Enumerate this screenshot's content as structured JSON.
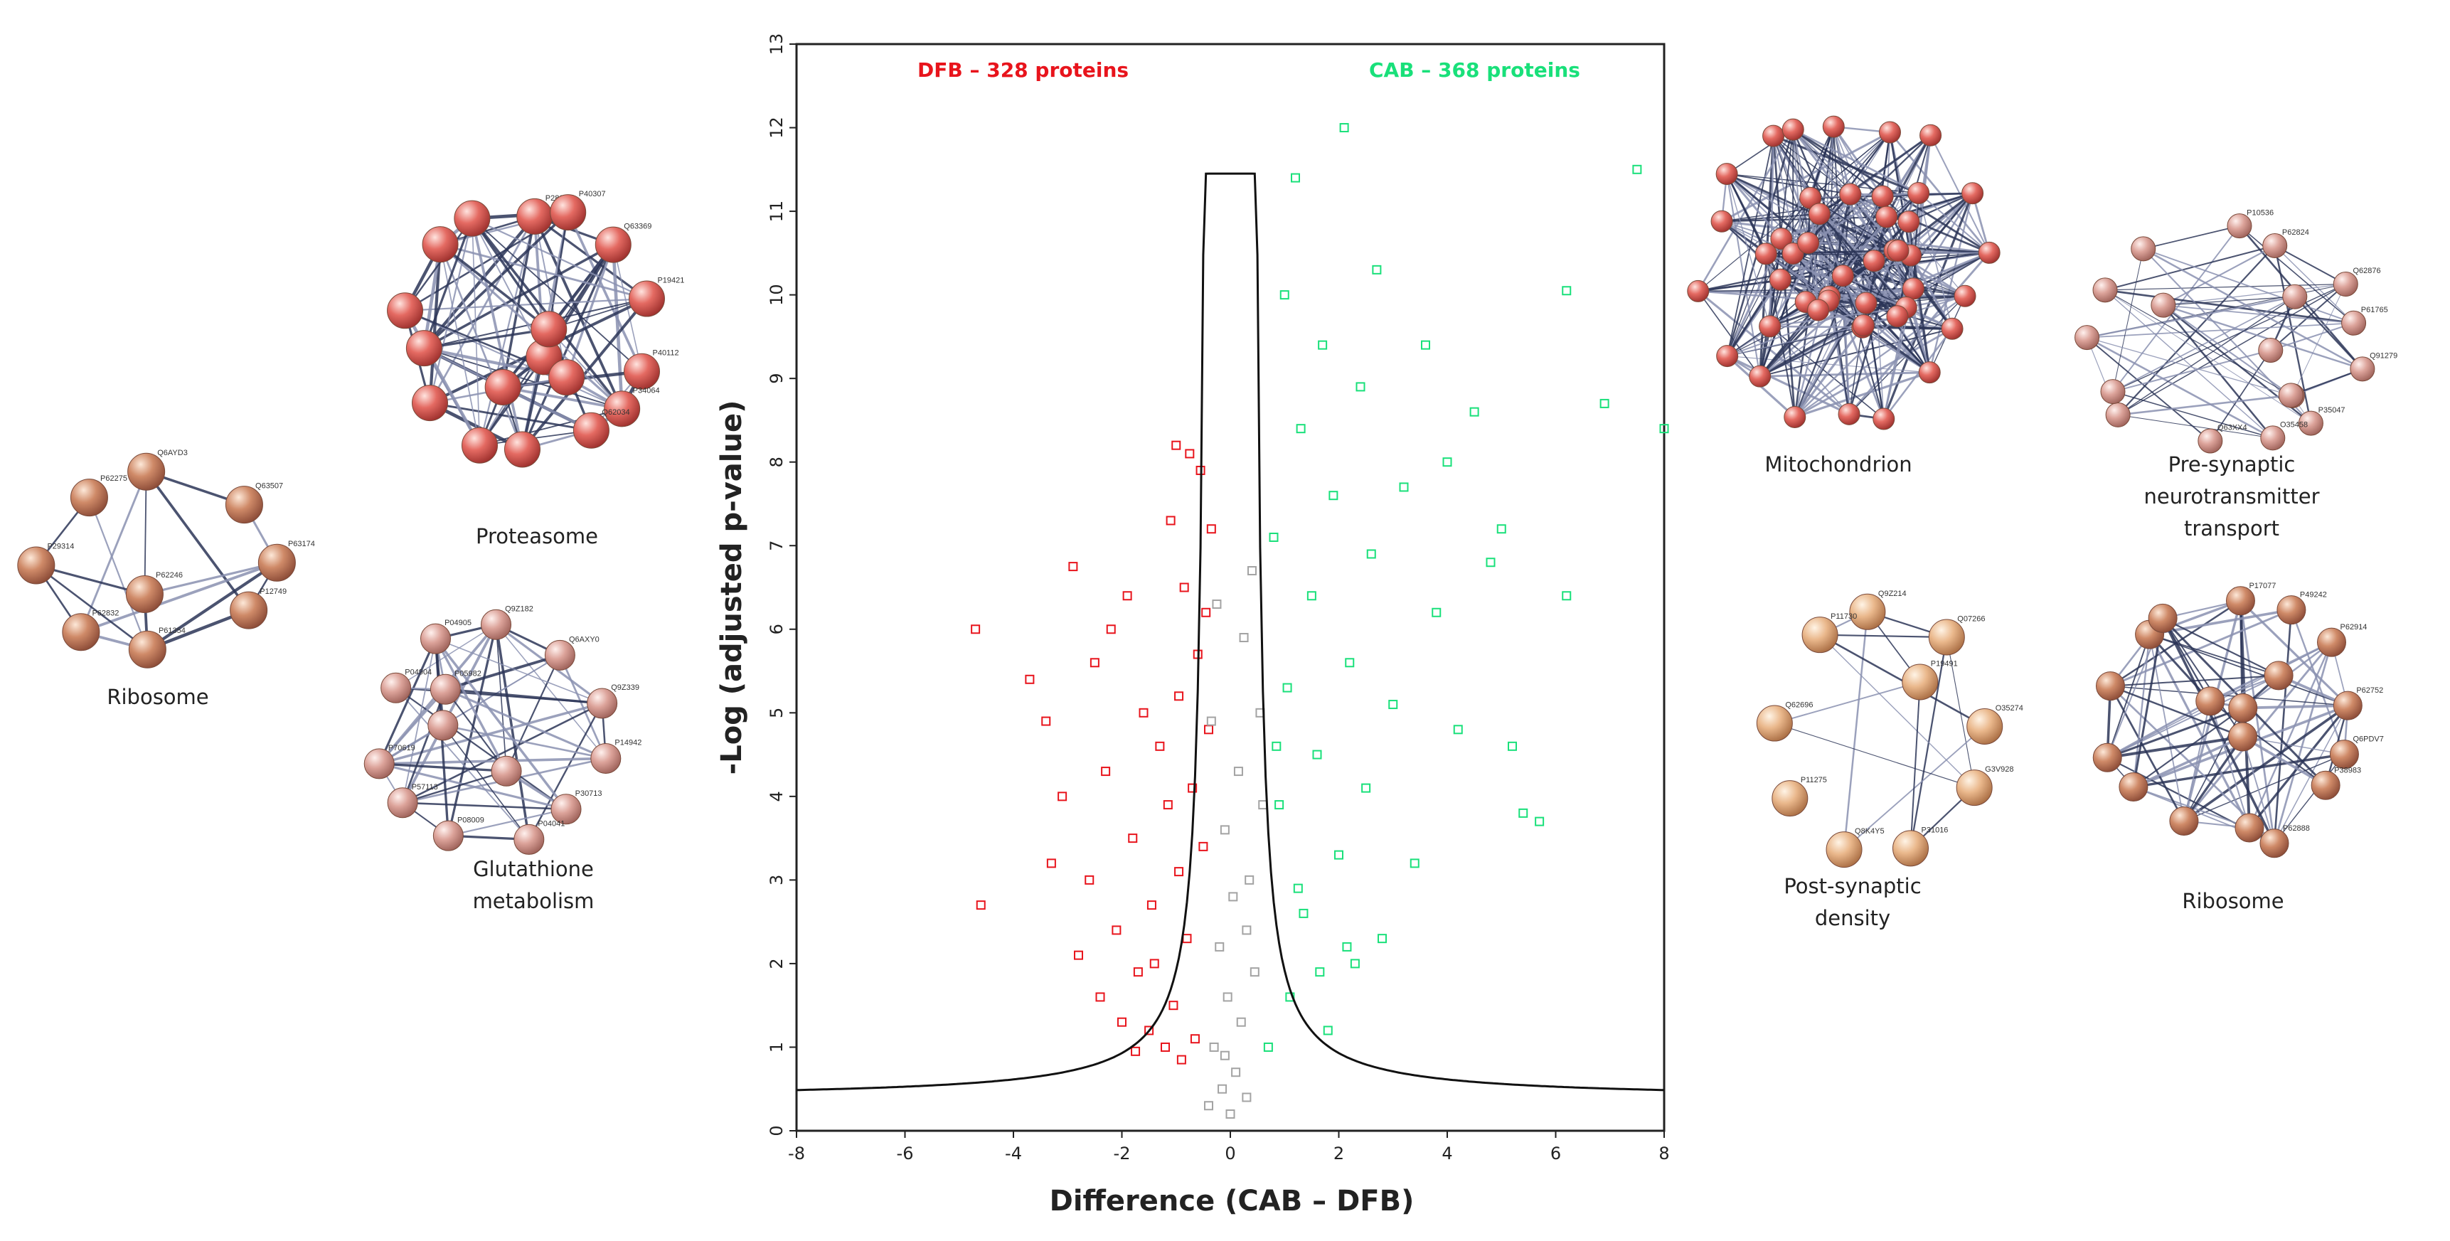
{
  "chart_data": {
    "type": "scatter",
    "title": "",
    "xlabel": "Difference (CAB – DFB)",
    "ylabel": "-Log (adjusted p-value)",
    "xlim": [
      -8,
      8
    ],
    "ylim": [
      0,
      13
    ],
    "x_ticks": [
      "-8",
      "-6",
      "-4",
      "-2",
      "0",
      "2",
      "4",
      "6",
      "8"
    ],
    "y_ticks": [
      "0",
      "1",
      "2",
      "3",
      "4",
      "5",
      "6",
      "7",
      "8",
      "9",
      "10",
      "11",
      "12",
      "13"
    ],
    "grid": false,
    "marker": "open-square",
    "group_labels": [
      {
        "text": "DFB – 328 proteins",
        "color": "#e8141c"
      },
      {
        "text": "CAB – 368 proteins",
        "color": "#19e07a"
      }
    ],
    "series": [
      {
        "name": "DFB",
        "color": "#e8141c",
        "count": 328,
        "points": [
          [
            -4.7,
            6.0
          ],
          [
            -4.6,
            2.7
          ],
          [
            -3.7,
            5.4
          ],
          [
            -3.4,
            4.9
          ],
          [
            -3.3,
            3.2
          ],
          [
            -2.9,
            6.75
          ],
          [
            -3.1,
            4.0
          ],
          [
            -2.8,
            2.1
          ],
          [
            -2.5,
            5.6
          ],
          [
            -2.6,
            3.0
          ],
          [
            -2.3,
            4.3
          ],
          [
            -2.2,
            6.0
          ],
          [
            -2.1,
            2.4
          ],
          [
            -1.9,
            6.4
          ],
          [
            -1.8,
            3.5
          ],
          [
            -1.7,
            1.9
          ],
          [
            -1.6,
            5.0
          ],
          [
            -1.5,
            1.2
          ],
          [
            -1.45,
            2.7
          ],
          [
            -1.3,
            4.6
          ],
          [
            -1.2,
            1.0
          ],
          [
            -1.1,
            7.3
          ],
          [
            -1.05,
            1.5
          ],
          [
            -1.0,
            8.2
          ],
          [
            -0.95,
            3.1
          ],
          [
            -0.9,
            0.85
          ],
          [
            -0.85,
            6.5
          ],
          [
            -0.8,
            2.3
          ],
          [
            -0.75,
            8.1
          ],
          [
            -0.7,
            4.1
          ],
          [
            -0.65,
            1.1
          ],
          [
            -0.6,
            5.7
          ],
          [
            -0.55,
            7.9
          ],
          [
            -0.5,
            3.4
          ],
          [
            -0.45,
            6.2
          ],
          [
            -0.4,
            4.8
          ],
          [
            -0.35,
            7.2
          ],
          [
            -2.4,
            1.6
          ],
          [
            -2.0,
            1.3
          ],
          [
            -1.75,
            0.95
          ],
          [
            -1.4,
            2.0
          ],
          [
            -1.15,
            3.9
          ],
          [
            -0.95,
            5.2
          ]
        ]
      },
      {
        "name": "CAB",
        "color": "#19e07a",
        "count": 368,
        "points": [
          [
            0.7,
            1.0
          ],
          [
            0.8,
            7.1
          ],
          [
            0.9,
            3.9
          ],
          [
            1.0,
            10.0
          ],
          [
            1.05,
            5.3
          ],
          [
            1.1,
            1.6
          ],
          [
            1.2,
            11.4
          ],
          [
            1.3,
            8.4
          ],
          [
            1.35,
            2.6
          ],
          [
            1.5,
            6.4
          ],
          [
            1.6,
            4.5
          ],
          [
            1.7,
            9.4
          ],
          [
            1.8,
            1.2
          ],
          [
            1.9,
            7.6
          ],
          [
            2.0,
            3.3
          ],
          [
            2.1,
            12.0
          ],
          [
            2.2,
            5.6
          ],
          [
            2.3,
            2.0
          ],
          [
            2.4,
            8.9
          ],
          [
            2.5,
            4.1
          ],
          [
            2.6,
            6.9
          ],
          [
            2.7,
            10.3
          ],
          [
            2.8,
            2.3
          ],
          [
            3.0,
            5.1
          ],
          [
            3.2,
            7.7
          ],
          [
            3.4,
            3.2
          ],
          [
            3.6,
            9.4
          ],
          [
            3.8,
            6.2
          ],
          [
            4.0,
            8.0
          ],
          [
            4.2,
            4.8
          ],
          [
            4.5,
            8.6
          ],
          [
            4.8,
            6.8
          ],
          [
            5.0,
            7.2
          ],
          [
            5.2,
            4.6
          ],
          [
            5.4,
            3.8
          ],
          [
            5.7,
            3.7
          ],
          [
            6.2,
            6.4
          ],
          [
            6.2,
            10.05
          ],
          [
            6.9,
            8.7
          ],
          [
            7.5,
            11.5
          ],
          [
            8.0,
            8.4
          ],
          [
            1.25,
            2.9
          ],
          [
            1.65,
            1.9
          ],
          [
            2.15,
            2.2
          ],
          [
            0.85,
            4.6
          ]
        ]
      },
      {
        "name": "",
        "color": "#a3a3a3",
        "points": [
          [
            -0.4,
            0.3
          ],
          [
            -0.3,
            1.0
          ],
          [
            -0.2,
            2.2
          ],
          [
            -0.15,
            0.5
          ],
          [
            -0.1,
            3.6
          ],
          [
            -0.05,
            1.6
          ],
          [
            0.0,
            0.2
          ],
          [
            0.05,
            2.8
          ],
          [
            0.1,
            0.7
          ],
          [
            0.15,
            4.3
          ],
          [
            0.2,
            1.3
          ],
          [
            0.25,
            5.9
          ],
          [
            0.3,
            0.4
          ],
          [
            0.35,
            3.0
          ],
          [
            0.4,
            6.7
          ],
          [
            0.45,
            1.9
          ],
          [
            -0.35,
            4.9
          ],
          [
            -0.25,
            6.3
          ],
          [
            0.3,
            2.4
          ],
          [
            -0.1,
            0.9
          ],
          [
            0.6,
            3.9
          ],
          [
            0.55,
            5.0
          ]
        ]
      }
    ],
    "threshold_curve": {
      "s0_asymptote": 0.38,
      "inner_half_width": 0.4,
      "plateau": 11.45
    }
  },
  "networks": [
    {
      "label": "Proteasome",
      "node_color": "#e05a58",
      "node_ids": [
        "P28075",
        "P40307",
        "Q63369",
        "P19421",
        "P40112",
        "P34064",
        "Q62034"
      ]
    },
    {
      "label": "Ribosome",
      "node_color": "#c98462",
      "node_ids": [
        "Q6AYD3",
        "Q63507",
        "P63174",
        "P12749",
        "P61354",
        "P62832",
        "P29314",
        "P62275",
        "P62246"
      ]
    },
    {
      "label": "Glutathione metabolism",
      "label_lines": [
        "Glutathione",
        "metabolism"
      ],
      "node_color": "#d69890",
      "node_ids": [
        "Q9Z182",
        "Q6AXY0",
        "Q9Z339",
        "P14942",
        "P30713",
        "P04041",
        "P08009",
        "P57113",
        "P70619",
        "P04904",
        "P04905",
        "P05982"
      ]
    },
    {
      "label": "Mitochondrion",
      "node_color": "#cf5a52",
      "node_ids": []
    },
    {
      "label": "Pre-synaptic neurotransmitter transport",
      "label_lines": [
        "Pre-synaptic",
        "neurotransmitter",
        "transport"
      ],
      "node_color": "#e0a896",
      "node_ids": [
        "P10536",
        "P62824",
        "Q62876",
        "P61765",
        "Q91279",
        "P35047",
        "O35458",
        "Q63XX4"
      ]
    },
    {
      "label": "Post-synaptic density",
      "label_lines": [
        "Post-synaptic",
        "density"
      ],
      "node_color": "#e8b08a",
      "node_ids": [
        "Q9Z214",
        "Q07266",
        "O35274",
        "G3V928",
        "P31016",
        "Q8K4Y5",
        "P11275",
        "Q62696",
        "P11730",
        "P19491"
      ]
    },
    {
      "label": "Ribosome",
      "node_color": "#c9806a",
      "node_ids": [
        "P17077",
        "P49242",
        "P62914",
        "P62752",
        "Q6PDV7",
        "P38983",
        "P62888"
      ]
    }
  ]
}
